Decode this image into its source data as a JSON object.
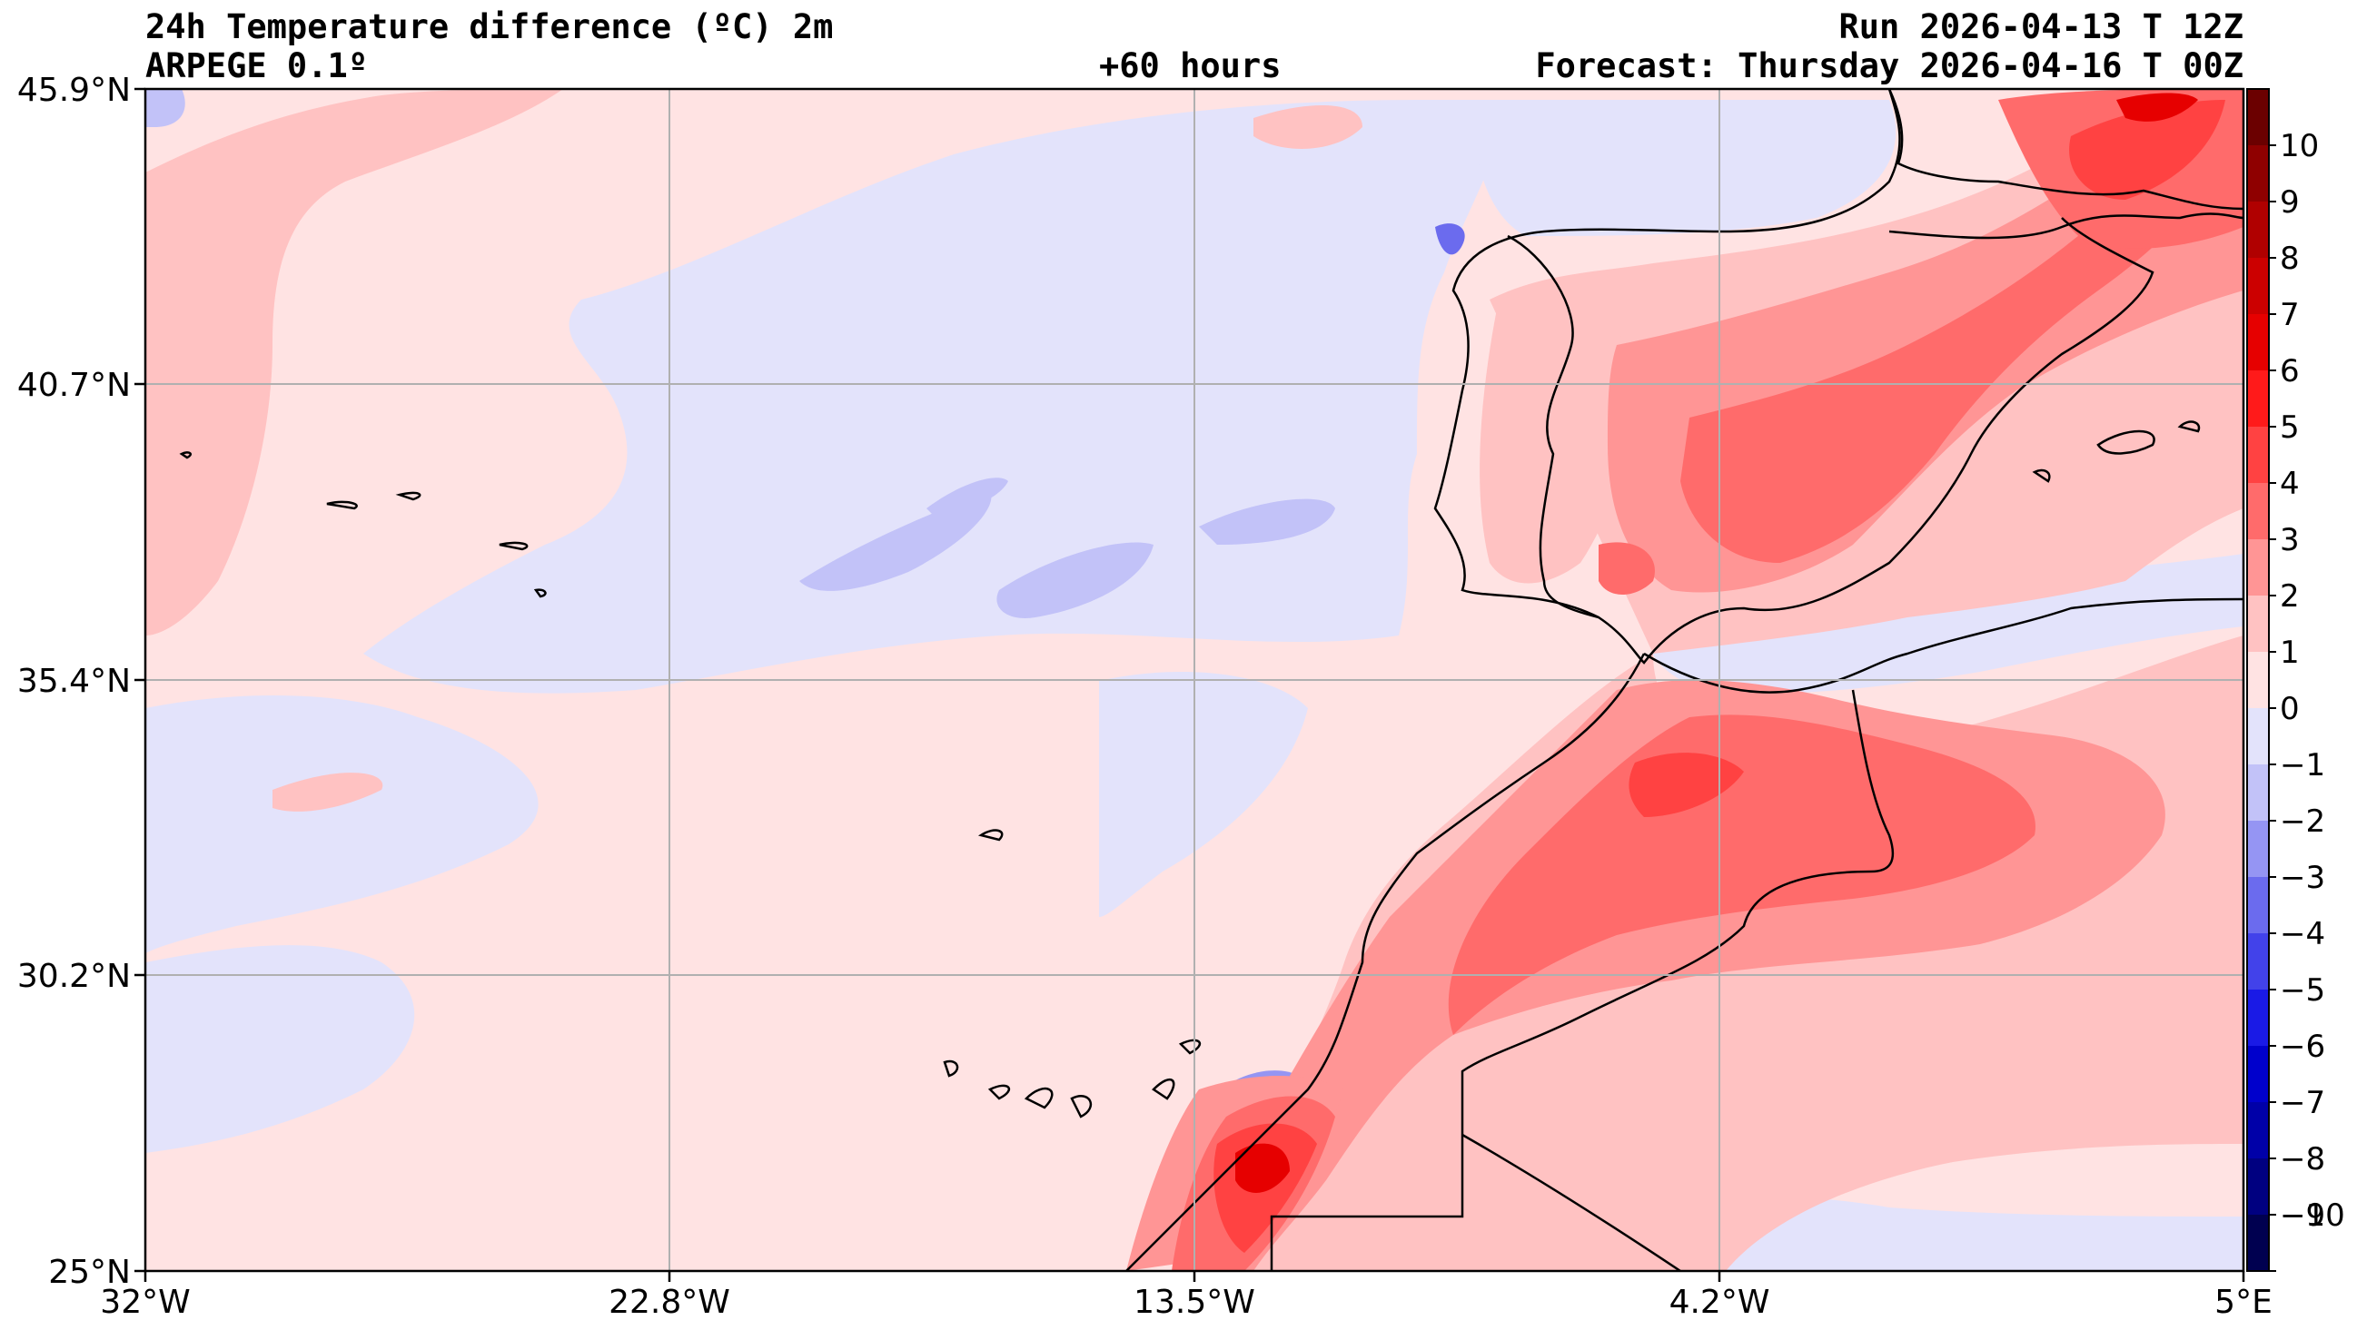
{
  "header": {
    "title": "24h Temperature difference (ºC) 2m",
    "model": "ARPEGE 0.1º",
    "lead": "+60 hours",
    "run": "Run 2026-04-13 T 12Z",
    "forecast": "Forecast: Thursday 2026-04-16 T 00Z"
  },
  "axes": {
    "lat_labels": [
      "45.9°N",
      "40.7°N",
      "35.4°N",
      "30.2°N",
      "25°N"
    ],
    "lon_labels": [
      "32°W",
      "22.8°W",
      "13.5°W",
      "4.2°W",
      "5°E"
    ]
  },
  "colorbar": {
    "labels": [
      "10",
      "9",
      "8",
      "7",
      "6",
      "5",
      "4",
      "3",
      "2",
      "1",
      "0",
      "−1",
      "−2",
      "−3",
      "−4",
      "−5",
      "−6",
      "−7",
      "−8",
      "−9",
      "−10"
    ],
    "colors": [
      "#6b0000",
      "#8f0000",
      "#b00000",
      "#cc0000",
      "#e60000",
      "#ff1a1a",
      "#ff4242",
      "#ff6b6b",
      "#ff9595",
      "#ffc2c2",
      "#ffe3e3",
      "#e3e3fb",
      "#c2c2f8",
      "#9595f3",
      "#6b6bee",
      "#4242ea",
      "#1a1ae6",
      "#0000cc",
      "#0000a8",
      "#000080",
      "#000050"
    ]
  }
}
